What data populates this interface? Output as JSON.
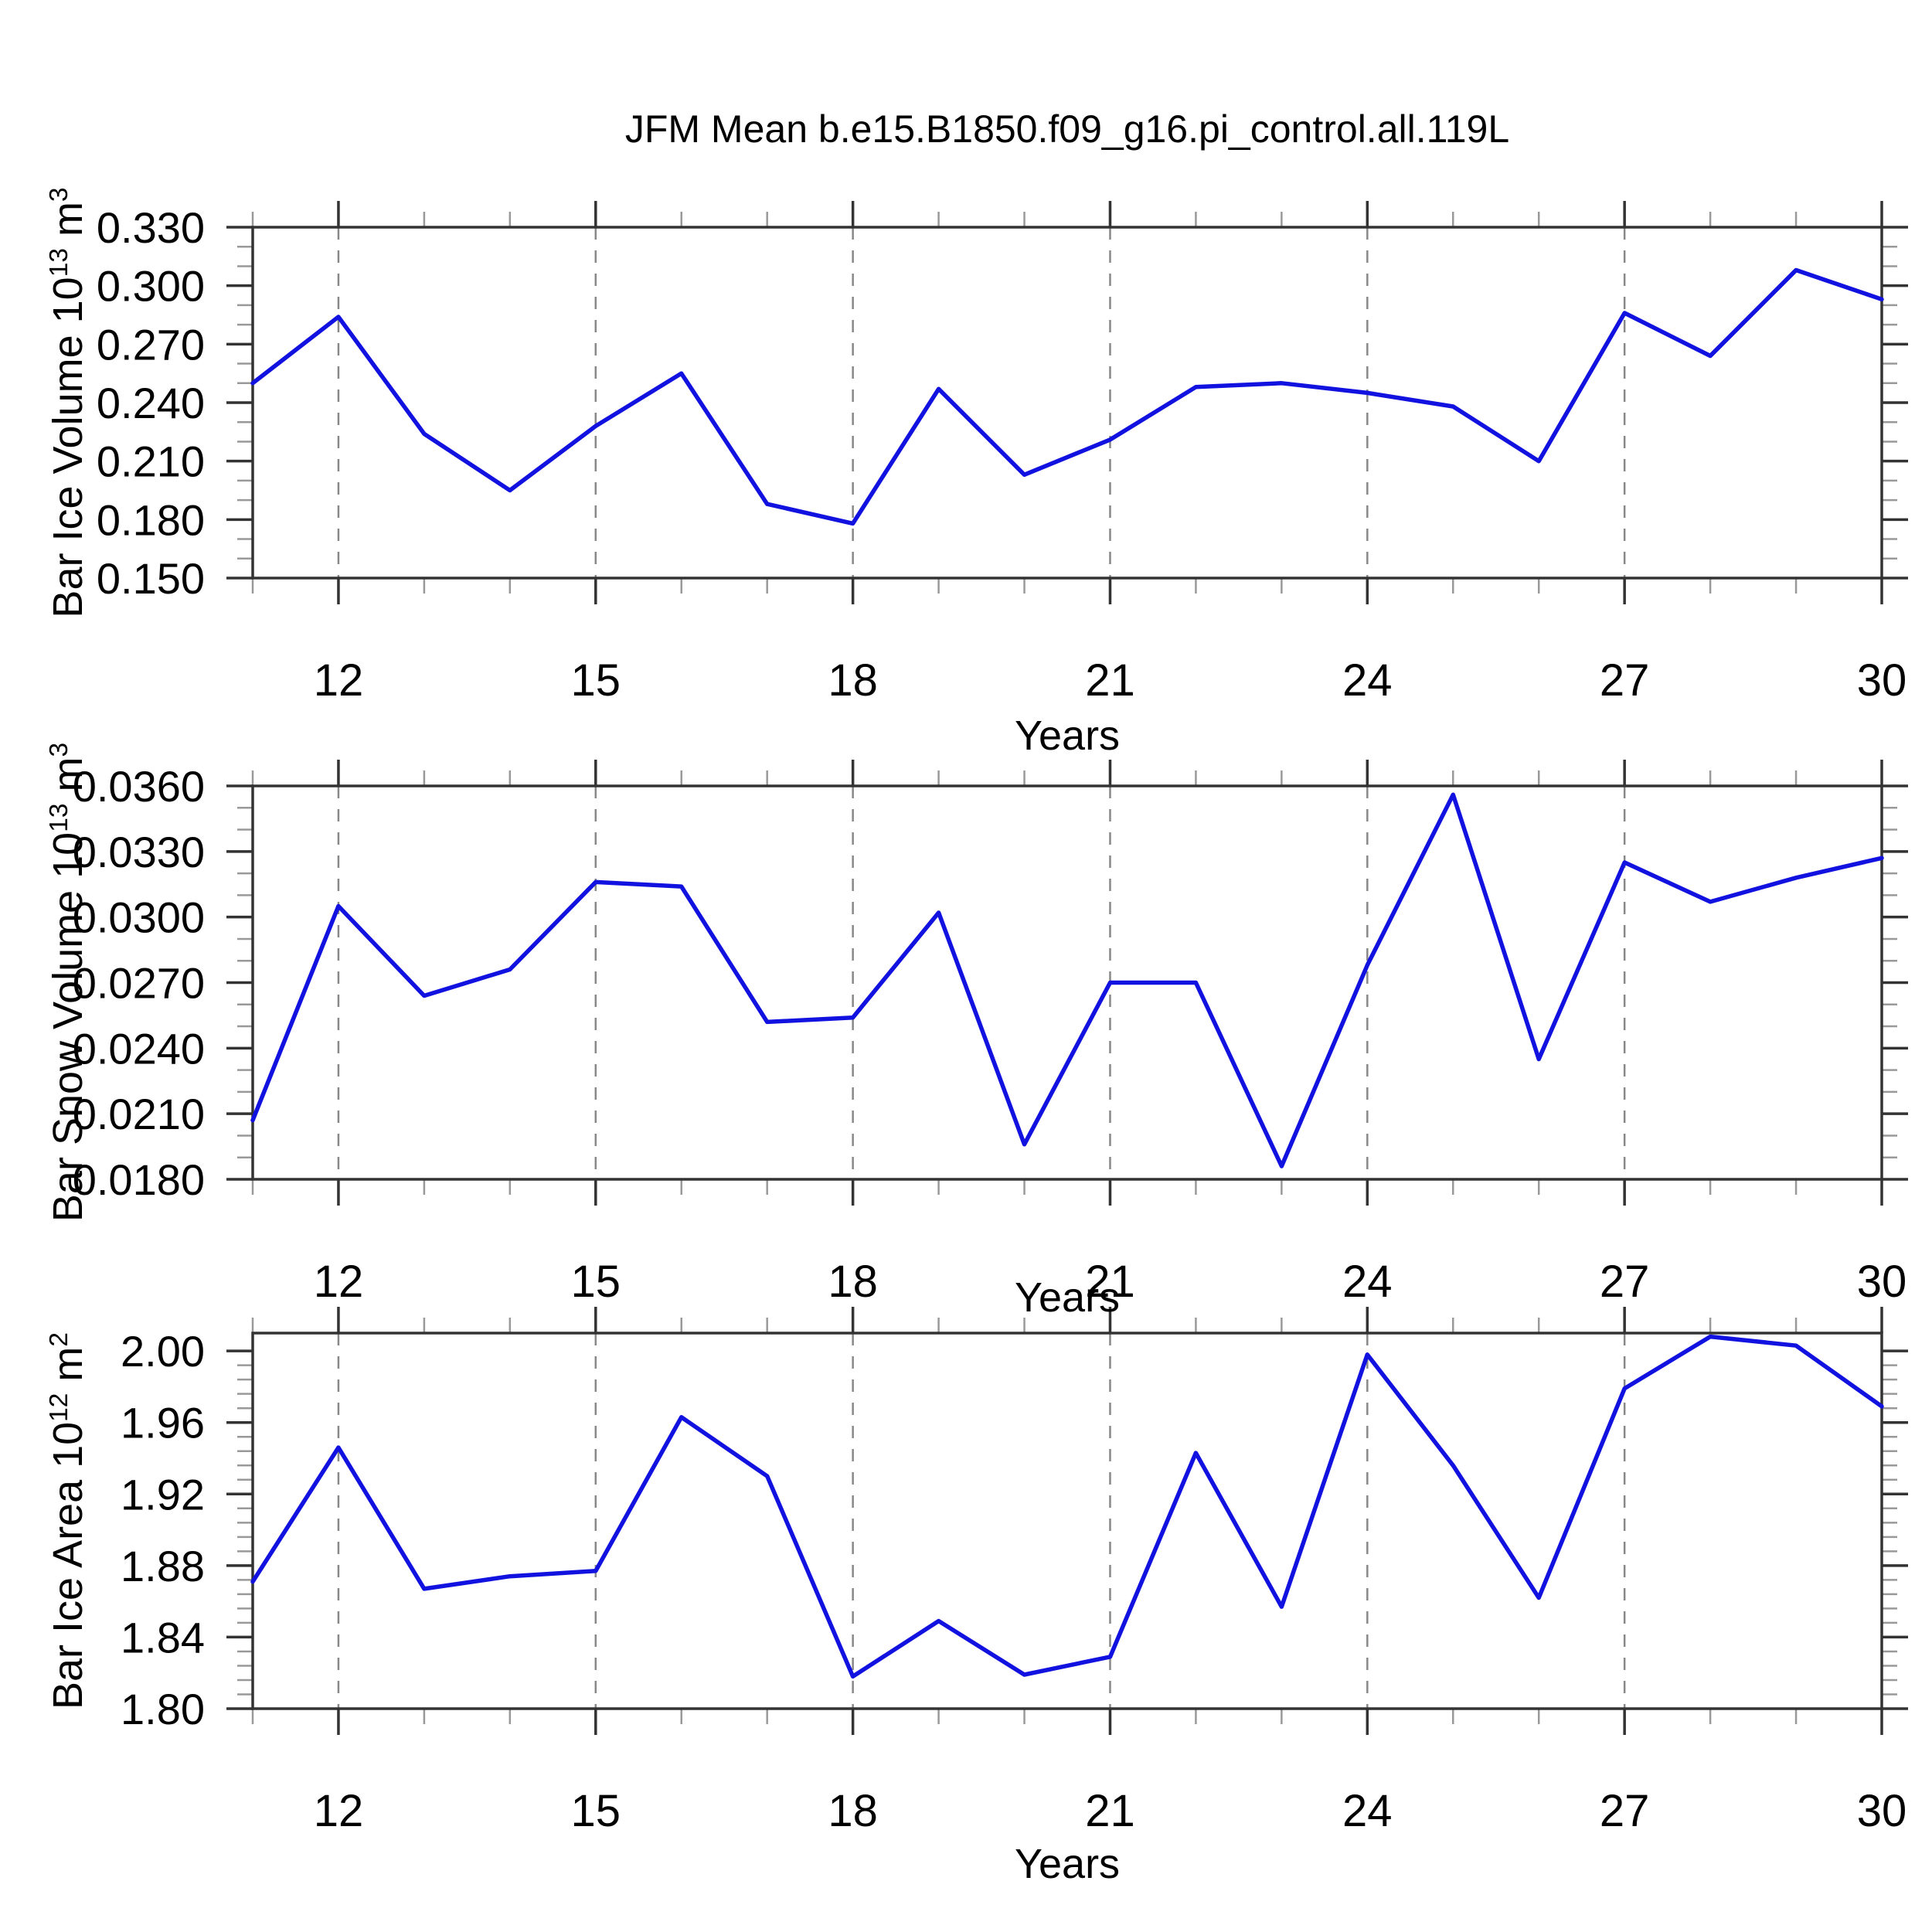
{
  "title": "JFM Mean b.e15.B1850.f09_g16.pi_control.all.119L",
  "xlabel": "Years",
  "colors": {
    "line": "#1212e0",
    "grid": "#888888",
    "axis_major": "#333333",
    "axis_minor": "#999999",
    "text": "#000000",
    "background": "#ffffff"
  },
  "chart_data": [
    {
      "type": "line",
      "name": "bar-ice-volume",
      "ylabel_text": "Bar Ice Volume 10^13 m^3",
      "ylabel_prefix": "Bar Ice Volume 10",
      "ylabel_exp": "13",
      "ylabel_unit": " m",
      "ylabel_unit_exp": "3",
      "xlabel": "Years",
      "x": [
        11,
        12,
        13,
        14,
        15,
        16,
        17,
        18,
        19,
        20,
        21,
        22,
        23,
        24,
        25,
        26,
        27,
        28,
        29,
        30
      ],
      "values": [
        0.25,
        0.284,
        0.224,
        0.195,
        0.228,
        0.255,
        0.188,
        0.178,
        0.247,
        0.203,
        0.221,
        0.248,
        0.25,
        0.245,
        0.238,
        0.21,
        0.286,
        0.264,
        0.308,
        0.293
      ],
      "xlim": [
        11,
        30
      ],
      "ylim": [
        0.15,
        0.33
      ],
      "x_major_ticks": [
        12,
        15,
        18,
        21,
        24,
        27,
        30
      ],
      "x_tick_labels": [
        "12",
        "15",
        "18",
        "21",
        "24",
        "27",
        "30"
      ],
      "x_minor_step": 1,
      "y_major_ticks": [
        0.15,
        0.18,
        0.21,
        0.24,
        0.27,
        0.3,
        0.33
      ],
      "y_tick_labels": [
        "0.150",
        "0.180",
        "0.210",
        "0.240",
        "0.270",
        "0.300",
        "0.330"
      ],
      "y_minor_step": 0.01,
      "grid_x": [
        12,
        15,
        18,
        21,
        24,
        27
      ],
      "grid_on": "vertical-dashed",
      "legend": "none"
    },
    {
      "type": "line",
      "name": "bar-snow-volume",
      "ylabel_text": "Bar Snow Volume 10^13 m^3",
      "ylabel_prefix": "Bar Snow Volume 10",
      "ylabel_exp": "13",
      "ylabel_unit": " m",
      "ylabel_unit_exp": "3",
      "xlabel": "Years",
      "x": [
        11,
        12,
        13,
        14,
        15,
        16,
        17,
        18,
        19,
        20,
        21,
        22,
        23,
        24,
        25,
        26,
        27,
        28,
        29,
        30
      ],
      "values": [
        0.0207,
        0.0305,
        0.0264,
        0.0276,
        0.0316,
        0.0314,
        0.0252,
        0.0254,
        0.0302,
        0.0196,
        0.027,
        0.027,
        0.0186,
        0.0278,
        0.0356,
        0.0235,
        0.0325,
        0.0307,
        0.0318,
        0.0327
      ],
      "xlim": [
        11,
        30
      ],
      "ylim": [
        0.018,
        0.036
      ],
      "x_major_ticks": [
        12,
        15,
        18,
        21,
        24,
        27,
        30
      ],
      "x_tick_labels": [
        "12",
        "15",
        "18",
        "21",
        "24",
        "27",
        "30"
      ],
      "x_minor_step": 1,
      "y_major_ticks": [
        0.018,
        0.021,
        0.024,
        0.027,
        0.03,
        0.033,
        0.036
      ],
      "y_tick_labels": [
        "0.0180",
        "0.0210",
        "0.0240",
        "0.0270",
        "0.0300",
        "0.0330",
        "0.0360"
      ],
      "y_minor_step": 0.001,
      "grid_x": [
        12,
        15,
        18,
        21,
        24,
        27
      ],
      "grid_on": "vertical-dashed",
      "legend": "none"
    },
    {
      "type": "line",
      "name": "bar-ice-area",
      "ylabel_text": "Bar Ice Area 10^12 m^2",
      "ylabel_prefix": "Bar Ice Area 10",
      "ylabel_exp": "12",
      "ylabel_unit": " m",
      "ylabel_unit_exp": "2",
      "xlabel": "Years",
      "x": [
        11,
        12,
        13,
        14,
        15,
        16,
        17,
        18,
        19,
        20,
        21,
        22,
        23,
        24,
        25,
        26,
        27,
        28,
        29,
        30
      ],
      "values": [
        1.871,
        1.946,
        1.867,
        1.874,
        1.877,
        1.963,
        1.93,
        1.818,
        1.849,
        1.819,
        1.829,
        1.943,
        1.857,
        1.998,
        1.936,
        1.862,
        1.979,
        2.008,
        2.003,
        1.969
      ],
      "xlim": [
        11,
        30
      ],
      "ylim": [
        1.8,
        2.01
      ],
      "x_major_ticks": [
        12,
        15,
        18,
        21,
        24,
        27,
        30
      ],
      "x_tick_labels": [
        "12",
        "15",
        "18",
        "21",
        "24",
        "27",
        "30"
      ],
      "x_minor_step": 1,
      "y_major_ticks": [
        1.8,
        1.84,
        1.88,
        1.92,
        1.96,
        2.0
      ],
      "y_tick_labels": [
        "1.80",
        "1.84",
        "1.88",
        "1.92",
        "1.96",
        "2.00"
      ],
      "y_minor_step": 0.008,
      "grid_x": [
        12,
        15,
        18,
        21,
        24,
        27
      ],
      "grid_on": "vertical-dashed",
      "legend": "none"
    }
  ]
}
